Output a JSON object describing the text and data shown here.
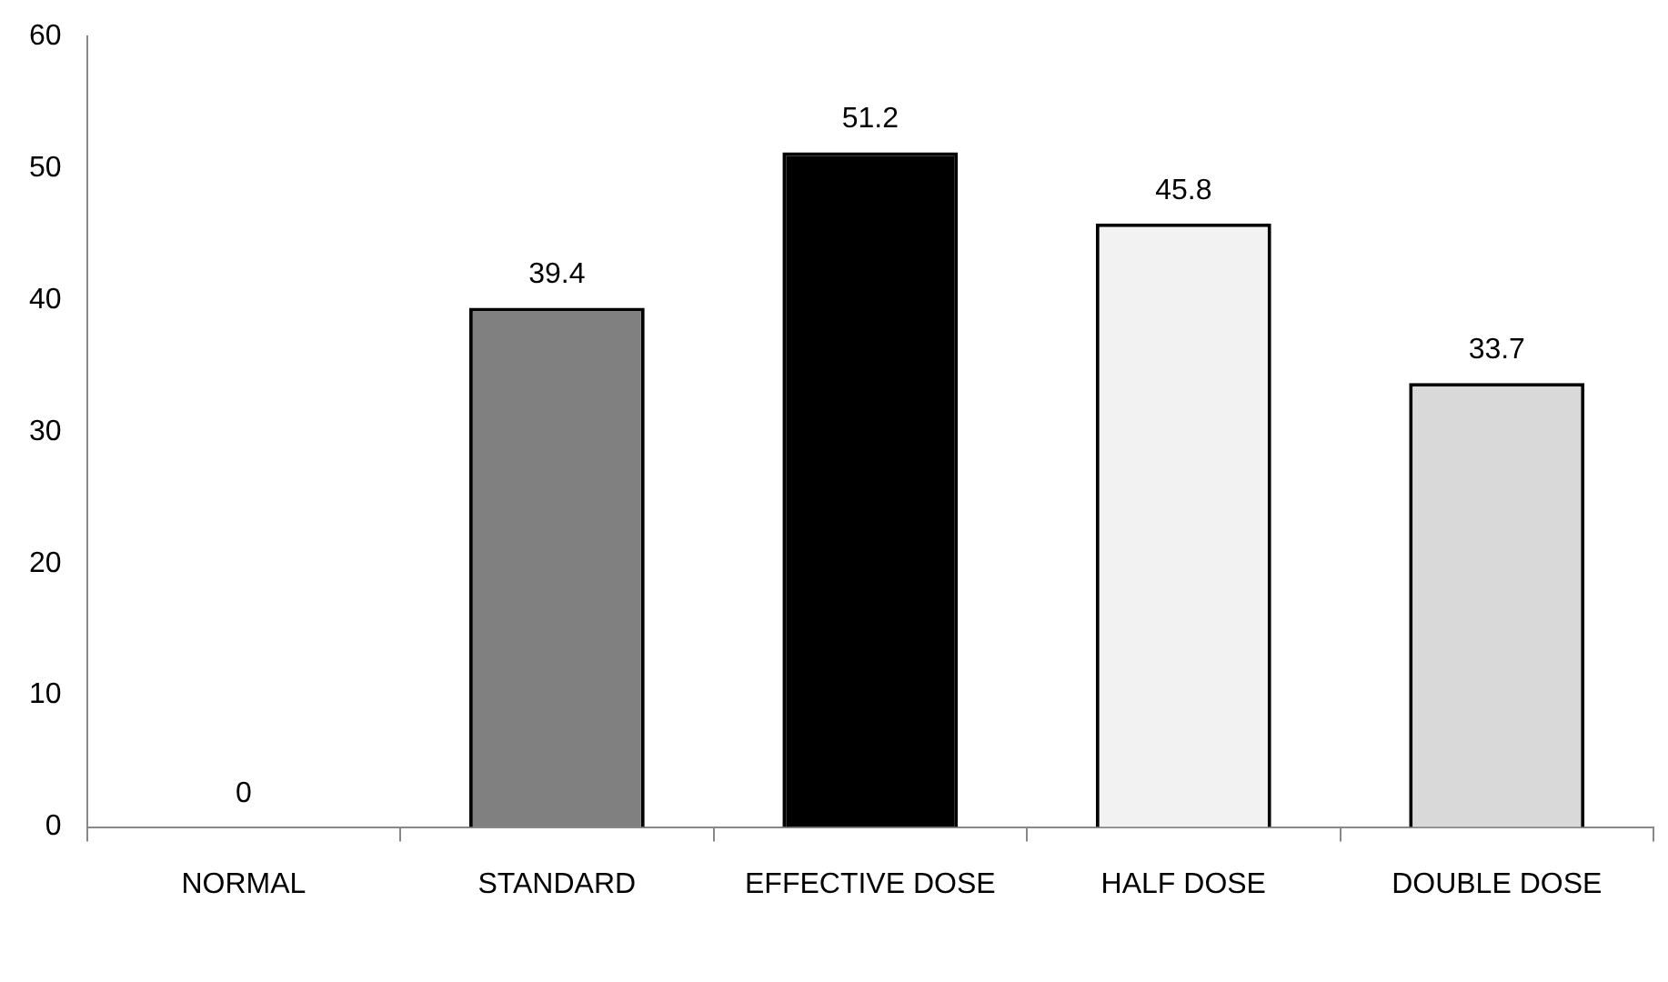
{
  "chart_data": {
    "type": "bar",
    "categories": [
      "NORMAL",
      "STANDARD",
      "EFFECTIVE DOSE",
      "HALF DOSE",
      "DOUBLE DOSE"
    ],
    "values": [
      0,
      39.4,
      51.2,
      45.8,
      33.7
    ],
    "colors": [
      "#ffffff",
      "#808080",
      "#000000",
      "#f2f2f2",
      "#d9d9d9"
    ],
    "ylim": [
      0,
      60
    ],
    "yticks": [
      0,
      10,
      20,
      30,
      40,
      50,
      60
    ],
    "grid": false,
    "legend": false,
    "data_labels": true
  }
}
